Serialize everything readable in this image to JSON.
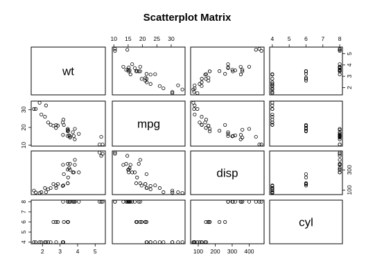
{
  "chart_data": {
    "type": "scatter",
    "title": "Scatterplot Matrix",
    "variables": [
      "wt",
      "mpg",
      "disp",
      "cyl"
    ],
    "ranges": {
      "wt": [
        1.513,
        5.424
      ],
      "mpg": [
        10.4,
        33.9
      ],
      "disp": [
        71.1,
        472
      ],
      "cyl": [
        4,
        8
      ]
    },
    "ticks": {
      "wt": [
        2,
        3,
        4,
        5
      ],
      "mpg": [
        10,
        15,
        20,
        25,
        30
      ],
      "disp": [
        100,
        200,
        300,
        400
      ],
      "cyl": [
        4,
        5,
        6,
        7,
        8
      ]
    },
    "left_ticks": {
      "wt": [
        10,
        20,
        30
      ],
      "mpg": [
        100,
        300
      ]
    },
    "observations": [
      {
        "wt": 2.62,
        "mpg": 21.0,
        "disp": 160.0,
        "cyl": 6
      },
      {
        "wt": 2.875,
        "mpg": 21.0,
        "disp": 160.0,
        "cyl": 6
      },
      {
        "wt": 2.32,
        "mpg": 22.8,
        "disp": 108.0,
        "cyl": 4
      },
      {
        "wt": 3.215,
        "mpg": 21.4,
        "disp": 258.0,
        "cyl": 6
      },
      {
        "wt": 3.44,
        "mpg": 18.7,
        "disp": 360.0,
        "cyl": 8
      },
      {
        "wt": 3.46,
        "mpg": 18.1,
        "disp": 225.0,
        "cyl": 6
      },
      {
        "wt": 3.57,
        "mpg": 14.3,
        "disp": 360.0,
        "cyl": 8
      },
      {
        "wt": 3.19,
        "mpg": 24.4,
        "disp": 146.7,
        "cyl": 4
      },
      {
        "wt": 3.15,
        "mpg": 22.8,
        "disp": 140.8,
        "cyl": 4
      },
      {
        "wt": 3.44,
        "mpg": 19.2,
        "disp": 167.6,
        "cyl": 6
      },
      {
        "wt": 3.44,
        "mpg": 17.8,
        "disp": 167.6,
        "cyl": 6
      },
      {
        "wt": 4.07,
        "mpg": 16.4,
        "disp": 275.8,
        "cyl": 8
      },
      {
        "wt": 3.73,
        "mpg": 17.3,
        "disp": 275.8,
        "cyl": 8
      },
      {
        "wt": 3.78,
        "mpg": 15.2,
        "disp": 275.8,
        "cyl": 8
      },
      {
        "wt": 5.25,
        "mpg": 10.4,
        "disp": 472.0,
        "cyl": 8
      },
      {
        "wt": 5.424,
        "mpg": 10.4,
        "disp": 460.0,
        "cyl": 8
      },
      {
        "wt": 5.345,
        "mpg": 14.7,
        "disp": 440.0,
        "cyl": 8
      },
      {
        "wt": 2.2,
        "mpg": 32.4,
        "disp": 78.7,
        "cyl": 4
      },
      {
        "wt": 1.615,
        "mpg": 30.4,
        "disp": 75.7,
        "cyl": 4
      },
      {
        "wt": 1.835,
        "mpg": 33.9,
        "disp": 71.1,
        "cyl": 4
      },
      {
        "wt": 2.465,
        "mpg": 21.5,
        "disp": 120.1,
        "cyl": 4
      },
      {
        "wt": 3.52,
        "mpg": 15.5,
        "disp": 318.0,
        "cyl": 8
      },
      {
        "wt": 3.435,
        "mpg": 15.2,
        "disp": 304.0,
        "cyl": 8
      },
      {
        "wt": 3.84,
        "mpg": 13.3,
        "disp": 350.0,
        "cyl": 8
      },
      {
        "wt": 3.845,
        "mpg": 19.2,
        "disp": 400.0,
        "cyl": 8
      },
      {
        "wt": 1.935,
        "mpg": 27.3,
        "disp": 79.0,
        "cyl": 4
      },
      {
        "wt": 2.14,
        "mpg": 26.0,
        "disp": 120.3,
        "cyl": 4
      },
      {
        "wt": 1.513,
        "mpg": 30.4,
        "disp": 95.1,
        "cyl": 4
      },
      {
        "wt": 3.17,
        "mpg": 15.8,
        "disp": 351.0,
        "cyl": 8
      },
      {
        "wt": 2.77,
        "mpg": 19.7,
        "disp": 145.0,
        "cyl": 6
      },
      {
        "wt": 3.57,
        "mpg": 15.0,
        "disp": 301.0,
        "cyl": 8
      },
      {
        "wt": 2.78,
        "mpg": 21.4,
        "disp": 121.0,
        "cyl": 4
      }
    ]
  }
}
